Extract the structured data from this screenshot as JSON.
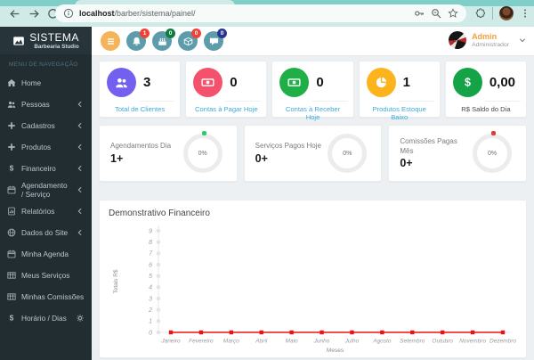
{
  "browser": {
    "url_host": "localhost",
    "url_path": "/barber/sistema/painel/",
    "icons": [
      "back-arrow",
      "forward-arrow",
      "reload",
      "info",
      "key",
      "zoom",
      "star-bookmark",
      "extensions",
      "profile-avatar",
      "menu-dots"
    ]
  },
  "brand": {
    "title": "SISTEMA",
    "subtitle": "Barbearia Studio",
    "icon": "area-chart"
  },
  "sidebar": {
    "menu_header": "MENU DE NAVEGAÇÃO",
    "items": [
      {
        "label": "Home",
        "icon": "home",
        "chevron": false,
        "gear": false
      },
      {
        "label": "Pessoas",
        "icon": "users",
        "chevron": true,
        "gear": false
      },
      {
        "label": "Cadastros",
        "icon": "plus",
        "chevron": true,
        "gear": false
      },
      {
        "label": "Produtos",
        "icon": "plus",
        "chevron": true,
        "gear": false
      },
      {
        "label": "Financeiro",
        "icon": "dollar",
        "chevron": true,
        "gear": false
      },
      {
        "label": "Agendamento / Serviço",
        "icon": "calendar",
        "chevron": true,
        "gear": false
      },
      {
        "label": "Relatórios",
        "icon": "report",
        "chevron": true,
        "gear": false
      },
      {
        "label": "Dados do Site",
        "icon": "globe",
        "chevron": true,
        "gear": false
      },
      {
        "label": "Minha Agenda",
        "icon": "calendar",
        "chevron": false,
        "gear": false
      },
      {
        "label": "Meus Serviços",
        "icon": "table",
        "chevron": false,
        "gear": false
      },
      {
        "label": "Minhas Comissões",
        "icon": "table",
        "chevron": false,
        "gear": false
      },
      {
        "label": "Horário / Dias",
        "icon": "dollar",
        "chevron": false,
        "gear": true
      }
    ]
  },
  "topbar": {
    "menu_button": {
      "icon": "hamburger",
      "color": "#f4b459"
    },
    "button_color": "#5d9dab",
    "buttons": [
      {
        "icon": "bell",
        "badge": "1",
        "badge_color": "#ef4136"
      },
      {
        "icon": "cake",
        "badge": "0",
        "badge_color": "#0e7e3e"
      },
      {
        "icon": "box",
        "badge": "0",
        "badge_color": "#ef4136"
      },
      {
        "icon": "chat",
        "badge": "0",
        "badge_color": "#283593"
      }
    ],
    "user": {
      "name": "Admin",
      "role": "Administrador"
    }
  },
  "stats": [
    {
      "value": "3",
      "label": "Total de Clientes",
      "icon": "users",
      "color": "#7460ee",
      "label_color": "#3ea9dc"
    },
    {
      "value": "0",
      "label": "Contas à Pagar Hoje",
      "icon": "money",
      "color": "#f4516c",
      "label_color": "#3ea9dc"
    },
    {
      "value": "0",
      "label": "Contas à Receber Hoje",
      "icon": "money",
      "color": "#1faf46",
      "label_color": "#3ea9dc"
    },
    {
      "value": "1",
      "label": "Produtos Estoque Baixo",
      "icon": "pie",
      "color": "#fcb31c",
      "label_color": "#3ea9dc"
    },
    {
      "value": "0,00",
      "label": "R$ Saldo do Dia",
      "icon": "dollar",
      "color": "#14a447",
      "label_color": "#4a4a4a"
    }
  ],
  "progress": [
    {
      "title": "Agendamentos Dia",
      "value": "1+",
      "percent": "0%",
      "dot_color": "#2ecc71"
    },
    {
      "title": "Serviços Pagos Hoje",
      "value": "0+",
      "percent": "0%",
      "dot_color": ""
    },
    {
      "title": "Comissões Pagas Mês",
      "value": "0+",
      "percent": "0%",
      "dot_color": "#e53935"
    }
  ],
  "chart_data": {
    "type": "line",
    "title": "Demonstrativo Financeiro",
    "categories": [
      "Janeiro",
      "Fevereiro",
      "Março",
      "Abril",
      "Maio",
      "Junho",
      "Julho",
      "Agosto",
      "Setembro",
      "Outubro",
      "Novembro",
      "Dezembro"
    ],
    "series": [
      {
        "name": "Totais",
        "values": [
          0,
          0,
          0,
          0,
          0,
          0,
          0,
          0,
          0,
          0,
          0,
          0
        ],
        "color": "#ee1111"
      }
    ],
    "xlabel": "Meses",
    "ylabel": "Totais R$",
    "ylim": [
      0,
      9
    ],
    "grid": false,
    "legend": "none"
  }
}
